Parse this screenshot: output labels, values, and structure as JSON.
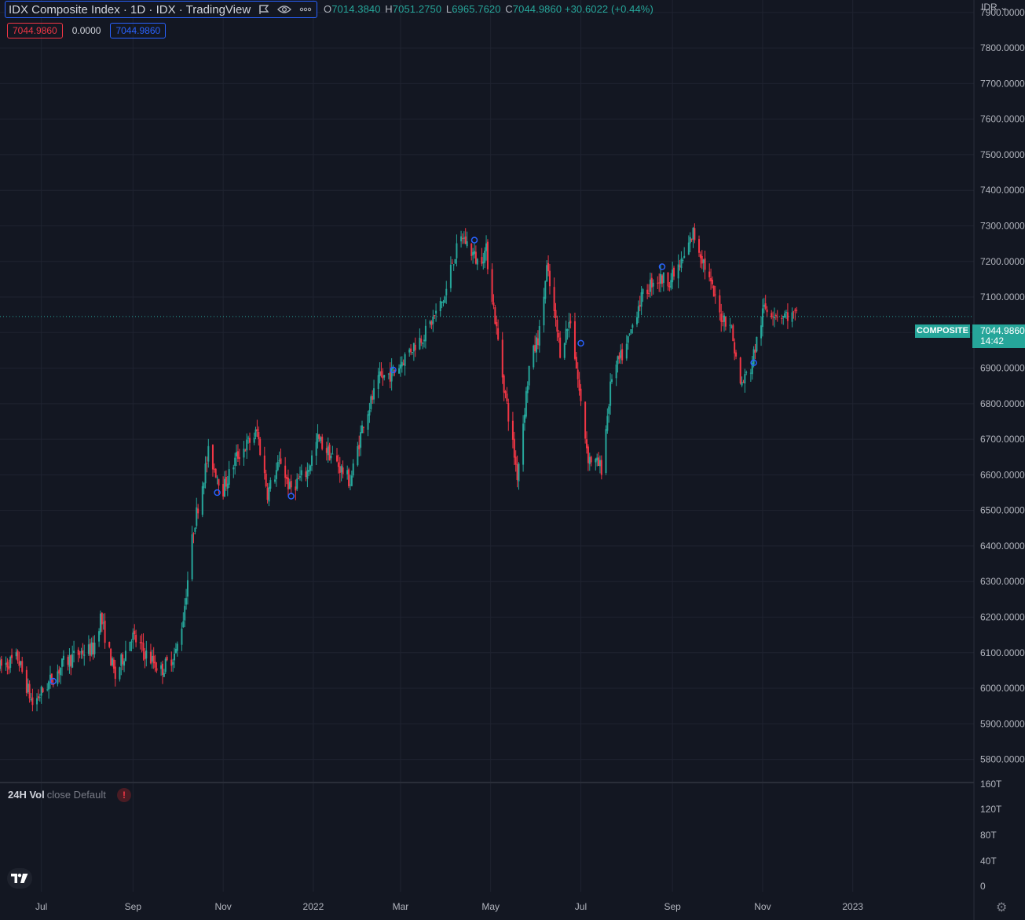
{
  "header": {
    "title": "IDX Composite Index · 1D · IDX · TradingView",
    "ohlc": {
      "open_label": "O",
      "open": "7014.3840",
      "high_label": "H",
      "high": "7051.2750",
      "low_label": "L",
      "low": "6965.7620",
      "close_label": "C",
      "close": "7044.9860",
      "change": "+30.6022 (+0.44%)"
    },
    "value_boxes": [
      "7044.9860",
      "0.0000",
      "7044.9860"
    ],
    "currency": "IDR"
  },
  "price_tag": {
    "symbol": "COMPOSITE",
    "value": "7044.9860",
    "countdown": "14:42"
  },
  "volume_pane": {
    "name": "24H Vol",
    "detail": "close Default",
    "warning_icon": "exclamation-icon",
    "axis_labels": [
      "160T",
      "120T",
      "80T",
      "40T",
      "0"
    ]
  },
  "colors": {
    "up": "#26a69a",
    "down": "#f23645",
    "background": "#131722",
    "grid": "#1f2330",
    "accent": "#2962ff"
  },
  "chart_data": {
    "type": "candlestick",
    "symbol": "IDX Composite Index",
    "interval": "1D",
    "y_axis": {
      "ticks": [
        "5800.0000",
        "5900.0000",
        "6000.0000",
        "6100.0000",
        "6200.0000",
        "6300.0000",
        "6400.0000",
        "6500.0000",
        "6600.0000",
        "6700.0000",
        "6800.0000",
        "6900.0000",
        "7000.0000",
        "7100.0000",
        "7200.0000",
        "7300.0000",
        "7400.0000",
        "7500.0000",
        "7600.0000",
        "7700.0000",
        "7800.0000",
        "7900.0000"
      ],
      "range": [
        5735,
        7935
      ]
    },
    "x_axis": {
      "ticks": [
        "Jul",
        "Sep",
        "Nov",
        "2022",
        "Mar",
        "May",
        "Jul",
        "Sep",
        "Nov",
        "2023"
      ],
      "range": [
        "2021-06-03",
        "2023-03-24"
      ]
    },
    "last_price": 7044.986,
    "price_path": [
      [
        "2021-06-03",
        6060
      ],
      [
        "2021-06-15",
        6085
      ],
      [
        "2021-06-25",
        5955
      ],
      [
        "2021-07-06",
        6015
      ],
      [
        "2021-07-16",
        6070
      ],
      [
        "2021-07-27",
        6100
      ],
      [
        "2021-08-05",
        6110
      ],
      [
        "2021-08-10",
        6200
      ],
      [
        "2021-08-20",
        6030
      ],
      [
        "2021-08-31",
        6150
      ],
      [
        "2021-09-09",
        6100
      ],
      [
        "2021-09-20",
        6050
      ],
      [
        "2021-09-30",
        6100
      ],
      [
        "2021-10-05",
        6200
      ],
      [
        "2021-10-12",
        6450
      ],
      [
        "2021-10-22",
        6660
      ],
      [
        "2021-11-01",
        6560
      ],
      [
        "2021-11-10",
        6650
      ],
      [
        "2021-11-24",
        6720
      ],
      [
        "2021-12-01",
        6550
      ],
      [
        "2021-12-10",
        6640
      ],
      [
        "2021-12-16",
        6560
      ],
      [
        "2021-12-28",
        6610
      ],
      [
        "2022-01-04",
        6700
      ],
      [
        "2022-01-14",
        6650
      ],
      [
        "2022-01-26",
        6580
      ],
      [
        "2022-02-04",
        6750
      ],
      [
        "2022-02-15",
        6870
      ],
      [
        "2022-02-25",
        6890
      ],
      [
        "2022-03-07",
        6950
      ],
      [
        "2022-03-18",
        7000
      ],
      [
        "2022-03-31",
        7100
      ],
      [
        "2022-04-05",
        7200
      ],
      [
        "2022-04-12",
        7270
      ],
      [
        "2022-04-22",
        7200
      ],
      [
        "2022-04-28",
        7230
      ],
      [
        "2022-05-09",
        6880
      ],
      [
        "2022-05-19",
        6600
      ],
      [
        "2022-05-27",
        6900
      ],
      [
        "2022-06-03",
        7000
      ],
      [
        "2022-06-08",
        7180
      ],
      [
        "2022-06-17",
        6950
      ],
      [
        "2022-06-24",
        7040
      ],
      [
        "2022-07-01",
        6800
      ],
      [
        "2022-07-06",
        6650
      ],
      [
        "2022-07-15",
        6620
      ],
      [
        "2022-07-22",
        6880
      ],
      [
        "2022-08-01",
        6960
      ],
      [
        "2022-08-09",
        7080
      ],
      [
        "2022-08-19",
        7150
      ],
      [
        "2022-08-31",
        7150
      ],
      [
        "2022-09-08",
        7200
      ],
      [
        "2022-09-15",
        7280
      ],
      [
        "2022-09-22",
        7200
      ],
      [
        "2022-10-03",
        7050
      ],
      [
        "2022-10-10",
        7030
      ],
      [
        "2022-10-17",
        6850
      ],
      [
        "2022-10-24",
        6900
      ],
      [
        "2022-11-02",
        7070
      ],
      [
        "2022-11-14",
        7050
      ],
      [
        "2022-11-24",
        7044.986
      ]
    ],
    "markers": [
      [
        "2021-07-09",
        6020
      ],
      [
        "2021-10-28",
        6550
      ],
      [
        "2021-12-17",
        6540
      ],
      [
        "2022-02-24",
        6895
      ],
      [
        "2022-04-20",
        7260
      ],
      [
        "2022-07-01",
        6970
      ],
      [
        "2022-08-25",
        7185
      ],
      [
        "2022-10-26",
        6915
      ]
    ]
  }
}
